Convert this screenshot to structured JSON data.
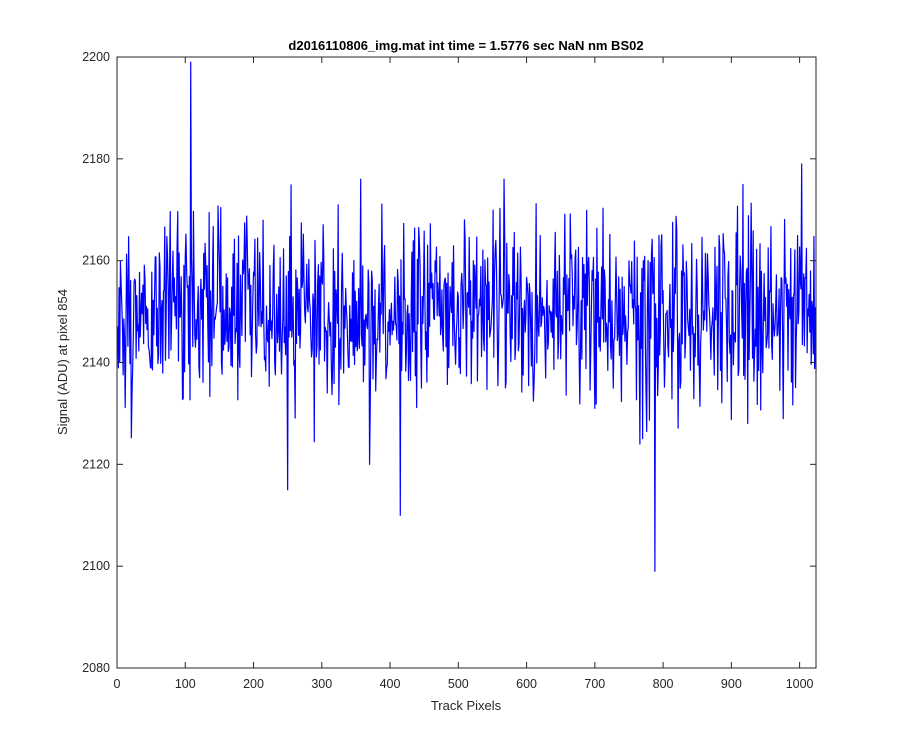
{
  "chart_data": {
    "type": "line",
    "title": "d2016110806_img.mat int time = 1.5776 sec  NaN nm BS02",
    "xlabel": "Track Pixels",
    "ylabel": "Signal (ADU) at pixel 854",
    "xlim": [
      0,
      1024
    ],
    "ylim": [
      2080,
      2200
    ],
    "xticks": [
      0,
      100,
      200,
      300,
      400,
      500,
      600,
      700,
      800,
      900,
      1000
    ],
    "yticks": [
      2080,
      2100,
      2120,
      2140,
      2160,
      2180,
      2200
    ],
    "grid": false,
    "box": true,
    "series": [
      {
        "color": "#0000ff",
        "x_start": 1,
        "x_step": 1,
        "approx_mean": 2150,
        "notable_points": [
          {
            "x": 108,
            "y": 2199
          },
          {
            "x": 250,
            "y": 2115
          },
          {
            "x": 370,
            "y": 2120
          },
          {
            "x": 415,
            "y": 2110
          },
          {
            "x": 788,
            "y": 2099
          },
          {
            "x": 1003,
            "y": 2179
          }
        ]
      }
    ]
  }
}
